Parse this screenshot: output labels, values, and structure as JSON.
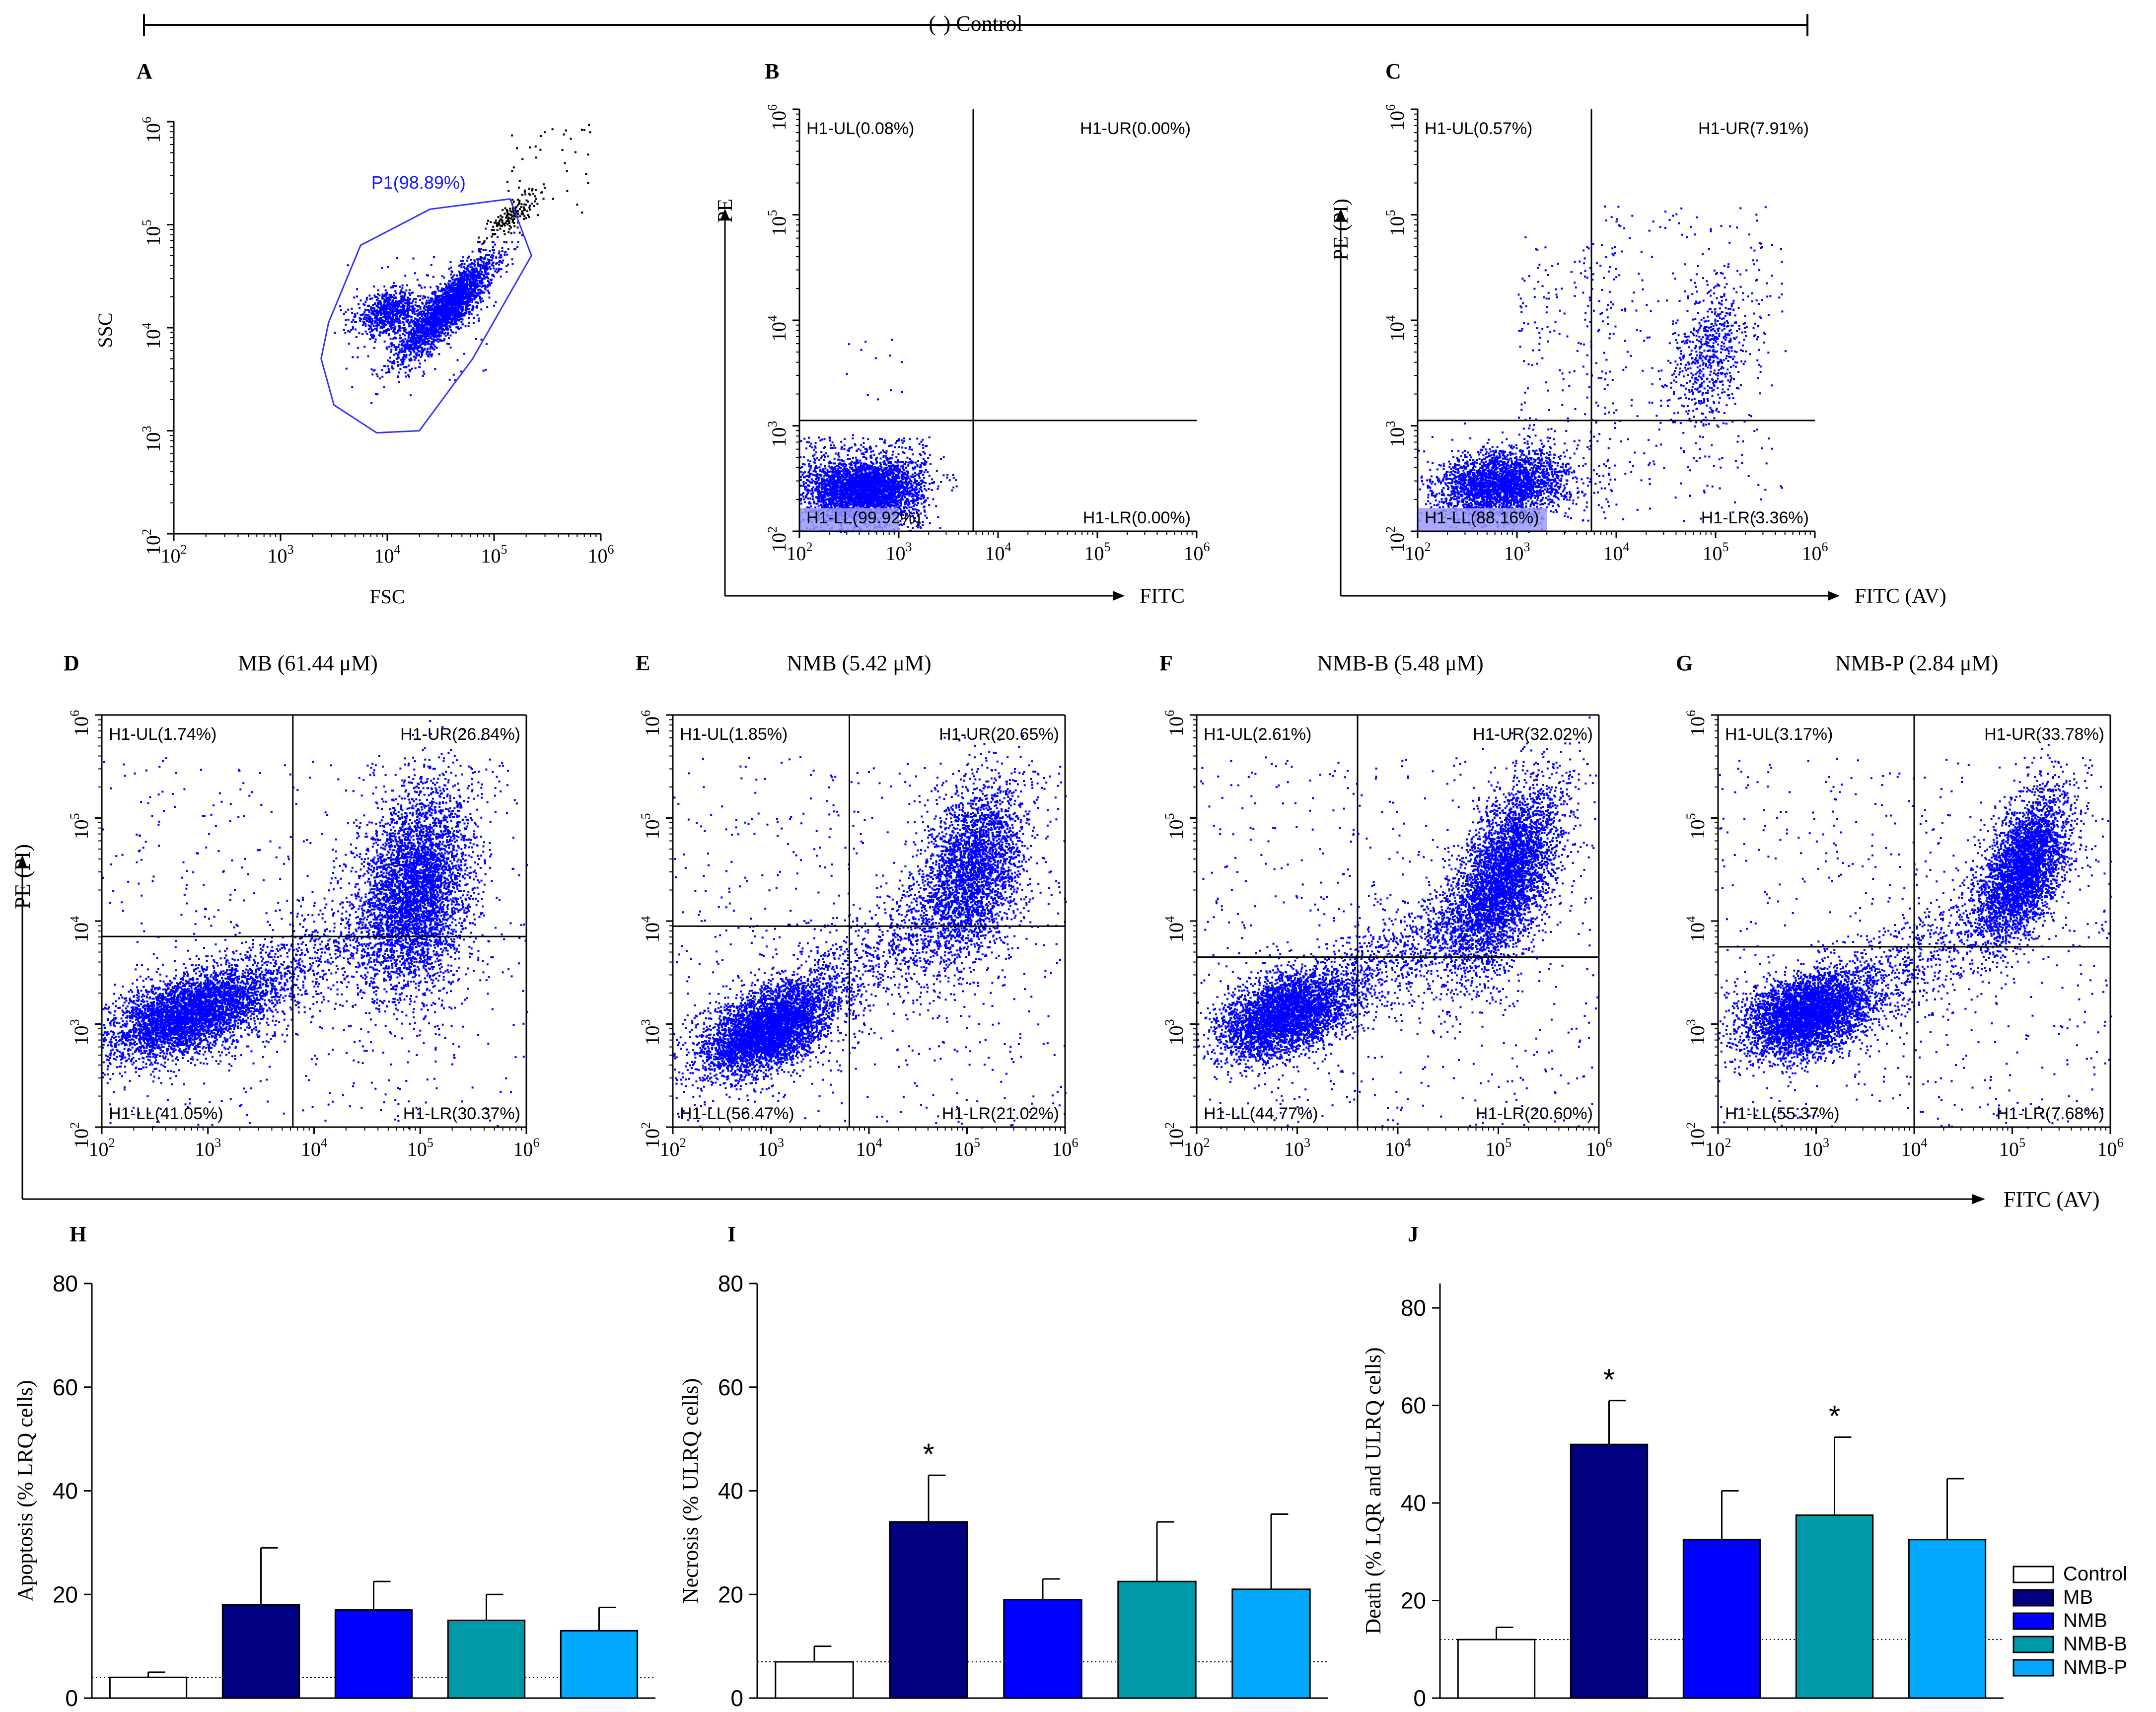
{
  "figure": {
    "control_label": "(-) Control",
    "shared_x_label": "FITC (AV)",
    "shared_y_label": "PE (PI)",
    "panel_letters": [
      "A",
      "B",
      "C",
      "D",
      "E",
      "F",
      "G",
      "H",
      "I",
      "J"
    ]
  },
  "chart_data": [
    {
      "type": "scatter",
      "id": "A",
      "title": "",
      "xlabel": "FSC",
      "ylabel": "SSC",
      "xlim_log10": [
        2,
        6
      ],
      "ylim_log10": [
        2,
        6
      ],
      "tick_labels": [
        "10^2",
        "10^3",
        "10^4",
        "10^5",
        "10^6"
      ],
      "gate": {
        "name": "P1",
        "label": "P1(98.89%)",
        "percent": 98.89
      },
      "point_color": "#0000ff",
      "outlier_color": "#000000"
    },
    {
      "type": "scatter",
      "id": "B",
      "title": "",
      "xlabel": "FITC",
      "ylabel": "PE",
      "xlim_log10": [
        2,
        6
      ],
      "ylim_log10": [
        2,
        6
      ],
      "tick_labels": [
        "10^2",
        "10^3",
        "10^4",
        "10^5",
        "10^6"
      ],
      "quadrants": {
        "UL": "H1-UL(0.08%)",
        "UR": "H1-UR(0.00%)",
        "LL": "H1-LL(99.92%)",
        "LR": "H1-LR(0.00%)"
      },
      "quadrant_percent": {
        "UL": 0.08,
        "UR": 0.0,
        "LL": 99.92,
        "LR": 0.0
      },
      "gate_log10": {
        "x": 3.75,
        "y": 3.05
      }
    },
    {
      "type": "scatter",
      "id": "C",
      "title": "",
      "xlabel": "FITC (AV)",
      "ylabel": "PE (PI)",
      "xlim_log10": [
        2,
        6
      ],
      "ylim_log10": [
        2,
        6
      ],
      "tick_labels": [
        "10^2",
        "10^3",
        "10^4",
        "10^5",
        "10^6"
      ],
      "quadrants": {
        "UL": "H1-UL(0.57%)",
        "UR": "H1-UR(7.91%)",
        "LL": "H1-LL(88.16%)",
        "LR": "H1-LR(3.36%)"
      },
      "quadrant_percent": {
        "UL": 0.57,
        "UR": 7.91,
        "LL": 88.16,
        "LR": 3.36
      },
      "gate_log10": {
        "x": 3.75,
        "y": 3.05
      }
    },
    {
      "type": "scatter",
      "id": "D",
      "title": "MB (61.44 μM)",
      "xlim_log10": [
        2,
        6
      ],
      "ylim_log10": [
        2,
        6
      ],
      "tick_labels": [
        "10^2",
        "10^3",
        "10^4",
        "10^5",
        "10^6"
      ],
      "quadrants": {
        "UL": "H1-UL(1.74%)",
        "UR": "H1-UR(26.84%)",
        "LL": "H1-LL(41.05%)",
        "LR": "H1-LR(30.37%)"
      },
      "quadrant_percent": {
        "UL": 1.74,
        "UR": 26.84,
        "LL": 41.05,
        "LR": 30.37
      },
      "gate_log10": {
        "x": 3.8,
        "y": 3.85
      }
    },
    {
      "type": "scatter",
      "id": "E",
      "title": "NMB (5.42 μM)",
      "xlim_log10": [
        2,
        6
      ],
      "ylim_log10": [
        2,
        6
      ],
      "tick_labels": [
        "10^2",
        "10^3",
        "10^4",
        "10^5",
        "10^6"
      ],
      "quadrants": {
        "UL": "H1-UL(1.85%)",
        "UR": "H1-UR(20.65%)",
        "LL": "H1-LL(56.47%)",
        "LR": "H1-LR(21.02%)"
      },
      "quadrant_percent": {
        "UL": 1.85,
        "UR": 20.65,
        "LL": 56.47,
        "LR": 21.02
      },
      "gate_log10": {
        "x": 3.8,
        "y": 3.95
      }
    },
    {
      "type": "scatter",
      "id": "F",
      "title": "NMB-B (5.48 μM)",
      "xlim_log10": [
        2,
        6
      ],
      "ylim_log10": [
        2,
        6
      ],
      "tick_labels": [
        "10^2",
        "10^3",
        "10^4",
        "10^5",
        "10^6"
      ],
      "quadrants": {
        "UL": "H1-UL(2.61%)",
        "UR": "H1-UR(32.02%)",
        "LL": "H1-LL(44.77%)",
        "LR": "H1-LR(20.60%)"
      },
      "quadrant_percent": {
        "UL": 2.61,
        "UR": 32.02,
        "LL": 44.77,
        "LR": 20.6
      },
      "gate_log10": {
        "x": 3.6,
        "y": 3.65
      }
    },
    {
      "type": "scatter",
      "id": "G",
      "title": "NMB-P (2.84 μM)",
      "xlim_log10": [
        2,
        6
      ],
      "ylim_log10": [
        2,
        6
      ],
      "tick_labels": [
        "10^2",
        "10^3",
        "10^4",
        "10^5",
        "10^6"
      ],
      "quadrants": {
        "UL": "H1-UL(3.17%)",
        "UR": "H1-UR(33.78%)",
        "LL": "H1-LL(55.37%)",
        "LR": "H1-LR(7.68%)"
      },
      "quadrant_percent": {
        "UL": 3.17,
        "UR": 33.78,
        "LL": 55.37,
        "LR": 7.68
      },
      "gate_log10": {
        "x": 4.0,
        "y": 3.75
      }
    },
    {
      "type": "bar",
      "id": "H",
      "ylabel": "Apoptosis (% LRQ  cells)",
      "ylim": [
        0,
        80
      ],
      "yticks": [
        0,
        20,
        40,
        60,
        80
      ],
      "categories": [
        "Control",
        "MB",
        "NMB",
        "NMB-B",
        "NMB-P"
      ],
      "values": [
        4,
        18,
        17,
        15,
        13
      ],
      "errors": [
        1,
        11,
        5.5,
        5,
        4.5
      ],
      "significance": [
        "",
        "",
        "",
        "",
        ""
      ],
      "reference_line": 4
    },
    {
      "type": "bar",
      "id": "I",
      "ylabel": "Necrosis (% ULRQ  cells)",
      "ylim": [
        0,
        80
      ],
      "yticks": [
        0,
        20,
        40,
        60,
        80
      ],
      "categories": [
        "Control",
        "MB",
        "NMB",
        "NMB-B",
        "NMB-P"
      ],
      "values": [
        7,
        34,
        19,
        22.5,
        21
      ],
      "errors": [
        3,
        9,
        4,
        11.5,
        14.5
      ],
      "significance": [
        "",
        "*",
        "",
        "",
        ""
      ],
      "reference_line": 7
    },
    {
      "type": "bar",
      "id": "J",
      "ylabel": "Death (% LQR and ULRQ cells)",
      "ylim": [
        0,
        85
      ],
      "yticks": [
        0,
        20,
        40,
        60,
        80
      ],
      "categories": [
        "Control",
        "MB",
        "NMB",
        "NMB-B",
        "NMB-P"
      ],
      "values": [
        12,
        52,
        32.5,
        37.5,
        32.5
      ],
      "errors": [
        2.5,
        9,
        10,
        16,
        12.5
      ],
      "significance": [
        "",
        "*",
        "",
        "*",
        ""
      ],
      "reference_line": 12
    }
  ],
  "legend": {
    "entries": [
      "Control",
      "MB",
      "NMB",
      "NMB-B",
      "NMB-P"
    ],
    "colors": [
      "#ffffff",
      "#000080",
      "#0000ff",
      "#0099a8",
      "#00a8ff"
    ],
    "position": "bottom-right"
  },
  "colors": {
    "dots": "#0000ff",
    "axes": "#000000",
    "gate": "#3333ff",
    "ll_highlight": "#9999ff"
  }
}
